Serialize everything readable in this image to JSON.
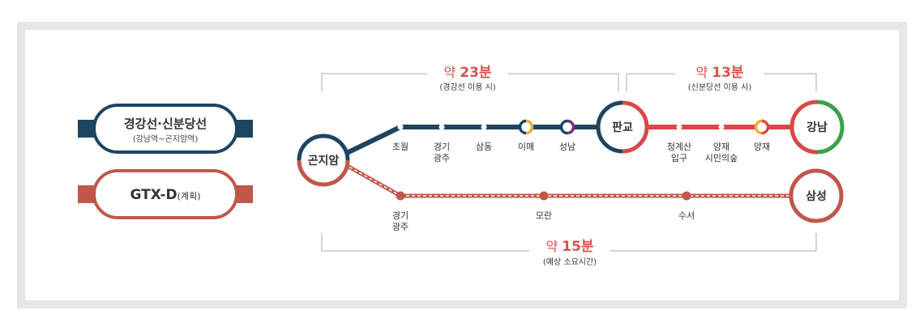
{
  "legend": {
    "gyeonggang": {
      "title": "경강선·신분당선",
      "subtitle": "(강남역~곤지암역)",
      "color": "#1d4560"
    },
    "gtxd": {
      "title_main": "GTX-D",
      "title_suffix": "(계획)",
      "color": "#c0574a"
    }
  },
  "colors": {
    "gyeonggang_line": "#1d4560",
    "sinbundang_line": "#d94848",
    "gtxd_line": "#c0574a",
    "line2_green": "#3aa14a",
    "bundang_yellow": "#f2a93b",
    "line8_purple": "#7a2a80",
    "time_red": "#d9534f"
  },
  "stations": {
    "gonjiam": "곤지암",
    "pangyo": "판교",
    "gangnam": "강남",
    "samseong": "삼성",
    "chowol": "초월",
    "gyeonggi_gwangju_1": "경기",
    "gyeonggi_gwangju_2": "광주",
    "samdong": "삼동",
    "imae": "이매",
    "seongnam": "성남",
    "cheonggyesan_1": "청계산",
    "cheonggyesan_2": "입구",
    "yangjae_forest_1": "양재",
    "yangjae_forest_2": "시민의숲",
    "yangjae": "양재",
    "gtx_gwangju_1": "경기",
    "gtx_gwangju_2": "광주",
    "moran": "모란",
    "suseo": "수서"
  },
  "times": {
    "gyeonggang": {
      "prefix": "약 ",
      "value": "23분",
      "note": "(경강선 이용 시)"
    },
    "sinbundang": {
      "prefix": "약 ",
      "value": "13분",
      "note": "(신분당선 이용 시)"
    },
    "gtxd": {
      "prefix": "약 ",
      "value": "15분",
      "note": "(예상 소요시간)"
    }
  }
}
